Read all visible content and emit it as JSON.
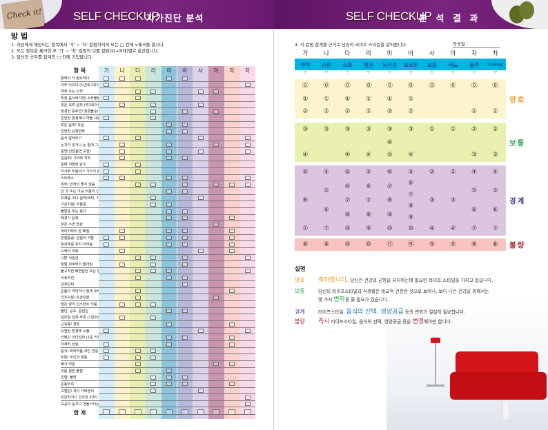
{
  "left": {
    "header": {
      "sticker": "Check it!",
      "title_en": "SELF CHECKUP",
      "title_ko": "자가진단 분석"
    },
    "method_title": "방 법",
    "instructions": [
      "1. 자신에게 해당되는 항목에서 '가' ~ '차' 칼럼까지의 모든 □ 칸에 ∨체크를 합니다.",
      "2. 모든 항목을 체크한 후 '가' ~ '차' 칼럼의 ☑를 칼럼(위→아래)별로 합산합니다.",
      "3. 합산한 숫자를 합계의 □ 칸에 기입합니다."
    ],
    "item_header": "항 목",
    "columns": [
      "가",
      "나",
      "다",
      "라",
      "마",
      "바",
      "사",
      "아",
      "자",
      "차"
    ],
    "column_colors": [
      "#d6ecf7",
      "#fdf2c9",
      "#e7efb0",
      "#c9e6dd",
      "#8ec3dc",
      "#b6b9da",
      "#dcd3ea",
      "#c994ad",
      "#fbd3cc",
      "#fad9ea"
    ],
    "rows": [
      {
        "label": "활력이 더 필요하다",
        "checks": [
          0,
          1,
          2,
          4,
          5
        ]
      },
      {
        "label": "자주 아프다 (1년에 2회이상)",
        "checks": [
          0,
          9
        ]
      },
      {
        "label": "체취 또는 구취",
        "checks": [
          2,
          3,
          6,
          7
        ]
      },
      {
        "label": "특정 음식에 대한 소화불량 현상",
        "checks": [
          0,
          2
        ]
      },
      {
        "label": "잦은 육류 섭취 (주2회이상)",
        "checks": [
          1,
          3,
          6
        ]
      },
      {
        "label": "월경전 증후군/ 월경불순/ 생리통",
        "checks": [
          3,
          5,
          7
        ]
      },
      {
        "label": "빈번한 항생제나 약물 사용",
        "checks": [
          0,
          3
        ]
      },
      {
        "label": "잦은 음주/ 과음",
        "checks": [
          4,
          5
        ]
      },
      {
        "label": "빈번한 감정변화",
        "checks": [
          4,
          5
        ]
      },
      {
        "label": "음식 알레르기",
        "checks": [
          0,
          2,
          6,
          9
        ]
      },
      {
        "label": "눈가가 붓거나 눈 밑에 그늘이 생김",
        "checks": [
          1,
          4,
          7,
          9
        ]
      },
      {
        "label": "흡연(간접흡연 포함)",
        "checks": [
          1,
          4,
          6,
          9
        ]
      },
      {
        "label": "집중력/ 기억력 저하",
        "checks": [
          1,
          4,
          5
        ]
      },
      {
        "label": "질병 저항력 감소",
        "checks": [
          0,
          2
        ]
      },
      {
        "label": "식사후 트림이나 가스의 발생/ 소화불량",
        "checks": [
          0,
          2
        ]
      },
      {
        "label": "스트레스",
        "checks": [
          0,
          1,
          4,
          5,
          9
        ]
      },
      {
        "label": "피부/ 안색이 좋지 않음",
        "checks": [
          2,
          3,
          5,
          7,
          8,
          9
        ]
      },
      {
        "label": "단 것 또는 가공 식품의 선호",
        "checks": [
          4,
          5
        ]
      },
      {
        "label": "유제품 과다 섭취(버터, 치즈, 우유등)",
        "checks": [
          3,
          6
        ]
      },
      {
        "label": "기관지염/ 우울증",
        "checks": [
          3,
          4
        ]
      },
      {
        "label": "불면증 또는 설사",
        "checks": [
          4,
          5
        ]
      },
      {
        "label": "폐경기 문제",
        "checks": [
          4,
          5,
          8
        ]
      },
      {
        "label": "잦은 소변 습관",
        "checks": [
          7
        ]
      },
      {
        "label": "머리카락이 잘 빠짐",
        "checks": [
          1,
          4,
          5,
          8
        ]
      },
      {
        "label": "관절통증/ 관절이 약함",
        "checks": [
          0,
          1,
          4,
          5,
          8
        ]
      },
      {
        "label": "정상체중 유지 어려움",
        "checks": [
          0,
          4,
          5,
          8
        ]
      },
      {
        "label": "시력의 약화",
        "checks": [
          1,
          6,
          8
        ]
      },
      {
        "label": "나쁜 식습관",
        "checks": [
          2,
          3,
          5,
          9
        ]
      },
      {
        "label": "질병 회복력이 떨어짐",
        "checks": [
          1,
          3,
          5
        ]
      },
      {
        "label": "불규칙한 배변습관 또는 변비",
        "checks": [
          2,
          3,
          4,
          9
        ]
      },
      {
        "label": "식욕부진",
        "checks": [
          2,
          4,
          5
        ]
      },
      {
        "label": "성욕감퇴",
        "checks": [
          5
        ]
      },
      {
        "label": "손톱이 약하거나 쉽게 부러짐",
        "checks": [
          2,
          8
        ]
      },
      {
        "label": "건조모발/ 손상모발",
        "checks": [
          2,
          7
        ]
      },
      {
        "label": "많은 양의 인스턴트 식품 섭취",
        "checks": [
          1,
          2,
          3
        ]
      },
      {
        "label": "불안, 공포, 중압감",
        "checks": [
          4,
          5
        ]
      },
      {
        "label": "섬유질 섭취 부족 (1일30g이하)",
        "checks": [
          1,
          3
        ]
      },
      {
        "label": "근육통/ 경련",
        "checks": [
          4,
          8
        ]
      },
      {
        "label": "오염된 환경에 노출",
        "checks": [
          0,
          6,
          9
        ]
      },
      {
        "label": "카페인 과다섭취 (1일 커피, 콜라 2잔 이상)",
        "checks": [
          4,
          5,
          8
        ]
      },
      {
        "label": "자제력 상실",
        "checks": [
          0,
          4,
          8
        ]
      },
      {
        "label": "음식/ 화학약품 과민 반응",
        "checks": [
          0,
          2,
          3
        ]
      },
      {
        "label": "두통/ 부인과 염증",
        "checks": [
          0,
          2,
          3
        ]
      },
      {
        "label": "뼈가 약함",
        "checks": [
          2,
          7,
          8
        ]
      },
      {
        "label": "잇몸 질환 출혈",
        "checks": [
          2,
          4
        ]
      },
      {
        "label": "빈혈/ 불면",
        "checks": [
          3,
          4,
          5
        ]
      },
      {
        "label": "운동부족",
        "checks": [
          3,
          4,
          5,
          8
        ]
      },
      {
        "label": "고혈압/ 과다 가래분비",
        "checks": [
          3,
          6
        ]
      },
      {
        "label": "민감하거나 건조한 피부/ 주름이 많이 생기는 피부",
        "checks": [
          9
        ]
      },
      {
        "label": "모공이 넓거나 번들거리는 피부/ 잡티",
        "checks": [
          9
        ]
      }
    ],
    "total_label": "합 계"
  },
  "right": {
    "header": {
      "title_en": "SELF CHECKUP",
      "title_ko": "분 석 결 과"
    },
    "step4": "4. 각 칼럼 합계를 근거로 당신의 라이프 스타일을 알아봅니다.",
    "date_label": "작성일 :",
    "columns": [
      "가",
      "나",
      "다",
      "라",
      "마",
      "바",
      "사",
      "아",
      "자",
      "차"
    ],
    "categories": [
      "면역",
      "순환",
      "소화",
      "장관",
      "뇌신경",
      "호르몬",
      "호흡",
      "비뇨",
      "골격",
      "피부와모발"
    ],
    "arrow": "▽",
    "bands": [
      {
        "label": "양호",
        "color": "#fdf3cc",
        "label_color": "#f59a2a",
        "cols": [
          [
            "⓪",
            "①",
            "②"
          ],
          [
            "⓪",
            "①",
            "②"
          ],
          [
            "⓪",
            "①",
            "②"
          ],
          [
            "⓪",
            "①",
            "②"
          ],
          [
            "⓪",
            "①",
            "②"
          ],
          [
            "⓪",
            "①",
            "②"
          ],
          [
            "⓪"
          ],
          [
            "⓪"
          ],
          [
            "⓪",
            "①"
          ],
          [
            "⓪",
            "①"
          ]
        ]
      },
      {
        "label": "보통",
        "color": "#e9f0b0",
        "label_color": "#2aa84a",
        "cols": [
          [
            "③",
            "④"
          ],
          [
            "③"
          ],
          [
            "③",
            "④"
          ],
          [
            "③",
            "④"
          ],
          [
            "③",
            "④",
            "⑤"
          ],
          [
            "③",
            "④"
          ],
          [
            "①"
          ],
          [
            "①"
          ],
          [
            "②",
            "③"
          ],
          [
            "②",
            "③"
          ]
        ]
      },
      {
        "label": "경계",
        "color": "#dcc5df",
        "label_color": "#3b3f9a",
        "cols": [
          [
            "⑤",
            "⑥",
            "⑦"
          ],
          [
            "④",
            "⑤",
            "⑥",
            "⑦"
          ],
          [
            "⑤",
            "⑥",
            "⑦",
            "⑧",
            "⑨"
          ],
          [
            "⑤",
            "⑥",
            "⑦",
            "⑧",
            "⑨"
          ],
          [
            "⑥",
            "⑦",
            "⑧",
            "⑨",
            "⑩"
          ],
          [
            "⑤",
            "⑥",
            "⑦",
            "⑧",
            "⑨",
            "⑩"
          ],
          [
            "②",
            "③",
            "④"
          ],
          [
            "②",
            "③",
            "④"
          ],
          [
            "④",
            "⑤",
            "⑥",
            "⑦"
          ],
          [
            "④",
            "⑤",
            "⑥",
            "⑦"
          ]
        ]
      },
      {
        "label": "불량",
        "color": "#f8c3c0",
        "label_color": "#b2262c",
        "cols": [
          [
            "⑧"
          ],
          [
            "⑧"
          ],
          [
            "⑩"
          ],
          [
            "⑩"
          ],
          [
            "⑪"
          ],
          [
            "⑪"
          ],
          [
            "⑤"
          ],
          [
            "⑤"
          ],
          [
            "⑧"
          ],
          [
            "⑧"
          ]
        ]
      }
    ],
    "explain": {
      "title": "설명",
      "good": {
        "key": "양호",
        "hl": "축하합니다.",
        "text": " 당신은 건강의 균형을 유지하는데 필요한 라이프 스타일을 가지고 있습니다."
      },
      "normal": {
        "key": "보통",
        "line1": "당신의 라이프스타일과 식생활은 비교적 건전한 것으로 보이나, 보다 나은 건강을 위해서는",
        "pre": "몇 가지 ",
        "hl": "변화",
        "post": "를 줄 필요가 있습니다."
      },
      "border": {
        "key": "경계",
        "pre": "라이프스타일, ",
        "hl": "음식의 선택, 영양공급",
        "post": " 등의 변화가 절실히 필요합니다."
      },
      "bad": {
        "key": "불량",
        "hl": "즉시",
        "mid": " 라이프스타일, 음식의 선택, 영양공급 등을 ",
        "hl2": "변경",
        "post": "해야만 합니다."
      }
    }
  }
}
